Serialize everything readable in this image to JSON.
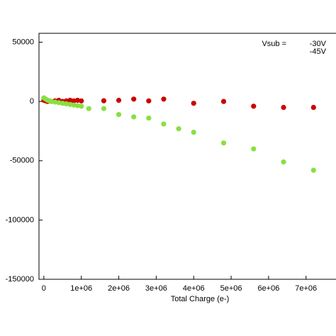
{
  "chart_data": {
    "type": "scatter",
    "x_label": "Total Charge (e-)",
    "xlim": [
      -130000,
      7800000
    ],
    "ylim": [
      -150000,
      57500
    ],
    "xticks": [
      0,
      {
        "value": 1000000,
        "label": "1e+06"
      },
      {
        "value": 2000000,
        "label": "2e+06"
      },
      {
        "value": 3000000,
        "label": "3e+06"
      },
      {
        "value": 4000000,
        "label": "4e+06"
      },
      {
        "value": 5000000,
        "label": "5e+06"
      },
      {
        "value": 6000000,
        "label": "6e+06"
      },
      {
        "value": 7000000,
        "label": "7e+06"
      }
    ],
    "yticks": [
      -150000,
      -100000,
      -50000,
      0,
      50000
    ],
    "legend_title": "Vsub = ",
    "series": [
      {
        "name": "-30V",
        "color": "#cc0000",
        "x": [
          0,
          50000,
          100000,
          150000,
          200000,
          300000,
          400000,
          500000,
          600000,
          700000,
          800000,
          900000,
          1000000,
          1600000,
          2000000,
          2400000,
          2800000,
          3200000,
          4000000,
          4800000,
          5600000,
          6400000,
          7200000
        ],
        "values": [
          1000,
          500,
          0,
          500,
          0,
          500,
          1000,
          0,
          500,
          1000,
          500,
          1000,
          500,
          600,
          1000,
          2000,
          500,
          2000,
          -1500,
          0,
          -4000,
          -5000,
          -5000
        ]
      },
      {
        "name": "-45V",
        "color": "#88e040",
        "x": [
          0,
          50000,
          100000,
          150000,
          200000,
          300000,
          400000,
          500000,
          600000,
          700000,
          800000,
          900000,
          1000000,
          1200000,
          1600000,
          2000000,
          2400000,
          2800000,
          3200000,
          3600000,
          4000000,
          4800000,
          5600000,
          6400000,
          7200000
        ],
        "values": [
          3000,
          2000,
          1000,
          500,
          0,
          -500,
          -1000,
          -1500,
          -2000,
          -2500,
          -3000,
          -3500,
          -4000,
          -6000,
          -6000,
          -11000,
          -13000,
          -14000,
          -19000,
          -23000,
          -26000,
          -35000,
          -40000,
          -51000,
          -58000
        ]
      }
    ]
  }
}
